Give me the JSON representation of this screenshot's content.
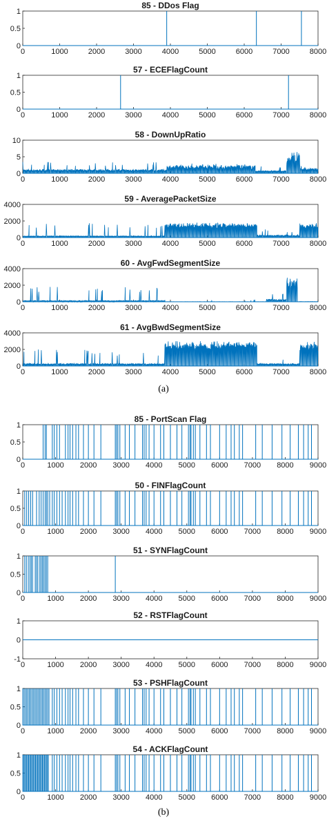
{
  "figure": {
    "caption_a": "(a)",
    "caption_b": "(b)"
  },
  "colors": {
    "series": "#0072bd",
    "axis": "#262626",
    "text": "#1a1a1a"
  },
  "chart_data": [
    {
      "type": "line",
      "title": "85 - DDos Flag",
      "xlim": [
        0,
        8000
      ],
      "ylim": [
        0,
        1
      ],
      "xticks": [
        0,
        1000,
        2000,
        3000,
        4000,
        5000,
        6000,
        7000,
        8000
      ],
      "yticks": [
        0,
        0.5,
        1
      ],
      "x_tick_labels": [
        "0",
        "1000",
        "2000",
        "3000",
        "4000",
        "5000",
        "6000",
        "7000",
        "8000"
      ],
      "y_tick_labels": [
        "0",
        "0.5",
        "1"
      ],
      "spikes": [
        3900,
        6330,
        7550
      ]
    },
    {
      "type": "line",
      "title": "57 - ECEFlagCount",
      "xlim": [
        0,
        8000
      ],
      "ylim": [
        0,
        1
      ],
      "xticks": [
        0,
        1000,
        2000,
        3000,
        4000,
        5000,
        6000,
        7000,
        8000
      ],
      "yticks": [
        0,
        0.5,
        1
      ],
      "x_tick_labels": [
        "0",
        "1000",
        "2000",
        "3000",
        "4000",
        "5000",
        "6000",
        "7000",
        "8000"
      ],
      "y_tick_labels": [
        "0",
        "0.5",
        "1"
      ],
      "spikes": [
        2650,
        7200
      ]
    },
    {
      "type": "line",
      "title": "58 - DownUpRatio",
      "xlim": [
        0,
        8000
      ],
      "ylim": [
        0,
        10
      ],
      "xticks": [
        0,
        1000,
        2000,
        3000,
        4000,
        5000,
        6000,
        7000,
        8000
      ],
      "yticks": [
        0,
        5,
        10
      ],
      "x_tick_labels": [
        "0",
        "1000",
        "2000",
        "3000",
        "4000",
        "5000",
        "6000",
        "7000",
        "8000"
      ],
      "y_tick_labels": [
        "0",
        "5",
        "10"
      ],
      "segments": [
        [
          0,
          1.2,
          0.4,
          3.5,
          0.06
        ],
        [
          3900,
          2.4,
          0.7,
          3.0,
          0.05
        ],
        [
          6300,
          0.8,
          0.4,
          2.5,
          0.04
        ],
        [
          7150,
          5.0,
          2.0,
          6.5,
          0.3
        ],
        [
          7500,
          1.5,
          0.6,
          2.5,
          0.05
        ],
        [
          8000,
          1.5,
          0.6,
          2.5,
          0.05
        ]
      ]
    },
    {
      "type": "line",
      "title": "59 - AveragePacketSize",
      "xlim": [
        0,
        8000
      ],
      "ylim": [
        0,
        4000
      ],
      "xticks": [
        0,
        1000,
        2000,
        3000,
        4000,
        5000,
        6000,
        7000,
        8000
      ],
      "yticks": [
        0,
        2000,
        4000
      ],
      "x_tick_labels": [
        "0",
        "1000",
        "2000",
        "3000",
        "4000",
        "5000",
        "6000",
        "7000",
        "8000"
      ],
      "y_tick_labels": [
        "0",
        "2000",
        "4000"
      ],
      "segments": [
        [
          0,
          200,
          100,
          1800,
          0.05
        ],
        [
          3850,
          1600,
          900,
          1800,
          0.2
        ],
        [
          5400,
          1600,
          1000,
          1750,
          0.2
        ],
        [
          6350,
          300,
          100,
          1000,
          0.05
        ],
        [
          7500,
          1600,
          900,
          1800,
          0.2
        ],
        [
          8000,
          1600,
          900,
          1800,
          0.2
        ]
      ]
    },
    {
      "type": "line",
      "title": "60 - AvgFwdSegmentSize",
      "xlim": [
        0,
        8000
      ],
      "ylim": [
        0,
        4000
      ],
      "xticks": [
        0,
        1000,
        2000,
        3000,
        4000,
        5000,
        6000,
        7000,
        8000
      ],
      "yticks": [
        0,
        2000,
        4000
      ],
      "x_tick_labels": [
        "0",
        "1000",
        "2000",
        "3000",
        "4000",
        "5000",
        "6000",
        "7000",
        "8000"
      ],
      "y_tick_labels": [
        "0",
        "2000",
        "4000"
      ],
      "segments": [
        [
          0,
          150,
          50,
          1900,
          0.05
        ],
        [
          3850,
          20,
          0,
          200,
          0.01
        ],
        [
          6600,
          300,
          100,
          1000,
          0.06
        ],
        [
          7150,
          2200,
          1200,
          2900,
          0.4
        ],
        [
          7450,
          30,
          0,
          200,
          0.01
        ],
        [
          8000,
          30,
          0,
          200,
          0.01
        ]
      ]
    },
    {
      "type": "line",
      "title": "61 - AvgBwdSegmentSize",
      "xlim": [
        0,
        8000
      ],
      "ylim": [
        0,
        4000
      ],
      "xticks": [
        0,
        1000,
        2000,
        3000,
        4000,
        5000,
        6000,
        7000,
        8000
      ],
      "yticks": [
        0,
        2000,
        4000
      ],
      "x_tick_labels": [
        "0",
        "1000",
        "2000",
        "3000",
        "4000",
        "5000",
        "6000",
        "7000",
        "8000"
      ],
      "y_tick_labels": [
        "0",
        "2000",
        "4000"
      ],
      "segments": [
        [
          0,
          300,
          100,
          2000,
          0.05
        ],
        [
          3850,
          2600,
          1500,
          3000,
          0.3
        ],
        [
          5400,
          2600,
          2000,
          2900,
          0.3
        ],
        [
          6350,
          300,
          100,
          1000,
          0.05
        ],
        [
          7500,
          2600,
          1500,
          3000,
          0.3
        ],
        [
          8000,
          2600,
          1500,
          3000,
          0.3
        ]
      ]
    },
    {
      "type": "line",
      "title": "85 - PortScan Flag",
      "xlim": [
        0,
        9000
      ],
      "ylim": [
        0,
        1
      ],
      "xticks": [
        0,
        1000,
        2000,
        3000,
        4000,
        5000,
        6000,
        7000,
        8000,
        9000
      ],
      "yticks": [
        0,
        0.5,
        1
      ],
      "x_tick_labels": [
        "0",
        "1000",
        "2000",
        "3000",
        "4000",
        "5000",
        "6000",
        "7000",
        "8000",
        "9000"
      ],
      "y_tick_labels": [
        "0",
        "0.5",
        "1"
      ],
      "spikes": [
        620,
        680,
        720,
        900,
        960,
        1040,
        1120,
        1300,
        1380,
        1440,
        1520,
        1620,
        1700,
        1850,
        2000,
        2170,
        2380,
        2820,
        2860,
        2900,
        2960,
        3120,
        3250,
        3420,
        3650,
        3700,
        3760,
        3850,
        4000,
        4200,
        4300,
        4500,
        4700,
        4850,
        5050,
        5100,
        5130,
        5200,
        5260,
        5400,
        5600,
        5720,
        6000,
        6200,
        6350,
        6450,
        6600,
        6700,
        7100,
        7300,
        7600,
        7900,
        8150,
        8400,
        8560,
        8700,
        8800
      ]
    },
    {
      "type": "line",
      "title": "50 - FINFlagCount",
      "xlim": [
        0,
        9000
      ],
      "ylim": [
        0,
        1
      ],
      "xticks": [
        0,
        1000,
        2000,
        3000,
        4000,
        5000,
        6000,
        7000,
        8000,
        9000
      ],
      "yticks": [
        0,
        0.5,
        1
      ],
      "x_tick_labels": [
        "0",
        "1000",
        "2000",
        "3000",
        "4000",
        "5000",
        "6000",
        "7000",
        "8000",
        "9000"
      ],
      "y_tick_labels": [
        "0",
        "0.5",
        "1"
      ],
      "spikes": [
        60,
        120,
        180,
        240,
        300,
        420,
        500,
        560,
        620,
        680,
        720,
        760,
        820,
        900,
        960,
        1040,
        1120,
        1200,
        1300,
        1380,
        1440,
        1520,
        1620,
        1700,
        1850,
        2000,
        2170,
        2380,
        2820,
        2860,
        2900,
        2960,
        3120,
        3250,
        3420,
        3650,
        3700,
        3760,
        3850,
        4000,
        4200,
        4300,
        4500,
        4700,
        4850,
        5050,
        5100,
        5130,
        5200,
        5260,
        5400,
        5600,
        5720,
        6000,
        6200,
        6350,
        6450,
        6600,
        6700,
        7100,
        7300,
        7600,
        7900,
        8150,
        8400,
        8560,
        8700,
        8800
      ]
    },
    {
      "type": "line",
      "title": "51 - SYNFlagCount",
      "xlim": [
        0,
        9000
      ],
      "ylim": [
        0,
        1
      ],
      "xticks": [
        0,
        1000,
        2000,
        3000,
        4000,
        5000,
        6000,
        7000,
        8000,
        9000
      ],
      "yticks": [
        0,
        0.5,
        1
      ],
      "x_tick_labels": [
        "0",
        "1000",
        "2000",
        "3000",
        "4000",
        "5000",
        "6000",
        "7000",
        "8000",
        "9000"
      ],
      "y_tick_labels": [
        "0",
        "0.5",
        "1"
      ],
      "spikes": [
        60,
        110,
        170,
        220,
        260,
        300,
        380,
        420,
        460,
        520,
        560,
        600,
        640,
        680,
        720,
        760,
        2820
      ]
    },
    {
      "type": "line",
      "title": "52 - RSTFlagCount",
      "xlim": [
        0,
        9000
      ],
      "ylim": [
        -1,
        1
      ],
      "xticks": [
        0,
        1000,
        2000,
        3000,
        4000,
        5000,
        6000,
        7000,
        8000,
        9000
      ],
      "yticks": [
        -1,
        0,
        1
      ],
      "x_tick_labels": [
        "0",
        "1000",
        "2000",
        "3000",
        "4000",
        "5000",
        "6000",
        "7000",
        "8000",
        "9000"
      ],
      "y_tick_labels": [
        "-1",
        "0",
        "1"
      ],
      "constant": 0
    },
    {
      "type": "line",
      "title": "53 - PSHFlagCount",
      "xlim": [
        0,
        9000
      ],
      "ylim": [
        0,
        1
      ],
      "xticks": [
        0,
        1000,
        2000,
        3000,
        4000,
        5000,
        6000,
        7000,
        8000,
        9000
      ],
      "yticks": [
        0,
        0.5,
        1
      ],
      "x_tick_labels": [
        "0",
        "1000",
        "2000",
        "3000",
        "4000",
        "5000",
        "6000",
        "7000",
        "8000",
        "9000"
      ],
      "y_tick_labels": [
        "0",
        "0.5",
        "1"
      ],
      "dense": [
        0,
        800,
        40
      ],
      "spikes": [
        900,
        960,
        1040,
        1120,
        1200,
        1300,
        1380,
        1440,
        1520,
        1620,
        1700,
        1850,
        2000,
        2170,
        2380,
        2820,
        2860,
        2900,
        2960,
        3120,
        3250,
        3420,
        3650,
        3700,
        3760,
        3850,
        4000,
        4200,
        4300,
        4500,
        4700,
        4850,
        5050,
        5100,
        5130,
        5200,
        5260,
        5400,
        5600,
        5720,
        6000,
        6200,
        6350,
        6450,
        6600,
        6700,
        7100,
        7300,
        7600,
        7900,
        8150,
        8400,
        8560,
        8700,
        8800
      ]
    },
    {
      "type": "line",
      "title": "54 - ACKFlagCount",
      "xlim": [
        0,
        9000
      ],
      "ylim": [
        0,
        1
      ],
      "xticks": [
        0,
        1000,
        2000,
        3000,
        4000,
        5000,
        6000,
        7000,
        8000,
        9000
      ],
      "yticks": [
        0,
        0.5,
        1
      ],
      "x_tick_labels": [
        "0",
        "1000",
        "2000",
        "3000",
        "4000",
        "5000",
        "6000",
        "7000",
        "8000",
        "9000"
      ],
      "y_tick_labels": [
        "0",
        "0.5",
        "1"
      ],
      "dense": [
        0,
        800,
        30
      ],
      "spikes": [
        900,
        960,
        1040,
        1120,
        1200,
        1300,
        1380,
        1440,
        1520,
        1620,
        1700,
        1850,
        2000,
        2170,
        2380,
        2820,
        2860,
        2900,
        2960,
        3120,
        3250,
        3420,
        3650,
        3700,
        3760,
        3850,
        4000,
        4200,
        4300,
        4500,
        4700,
        4850,
        5050,
        5100,
        5130,
        5200,
        5260,
        5400,
        5600,
        5720,
        6000,
        6200,
        6350,
        6450,
        6600,
        6700,
        7100,
        7300,
        7600,
        7900,
        8150,
        8400,
        8560,
        8700,
        8800
      ]
    }
  ]
}
